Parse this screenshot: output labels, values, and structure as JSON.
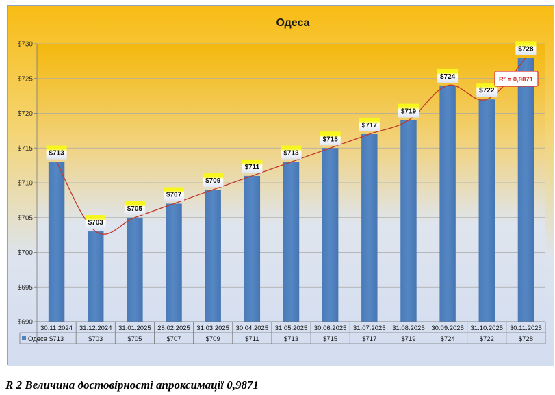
{
  "chart_data": {
    "type": "bar",
    "title": "Одеса",
    "categories": [
      "30.11.2024",
      "31.12.2024",
      "31.01.2025",
      "28.02.2025",
      "31.03.2025",
      "30.04.2025",
      "31.05.2025",
      "30.06.2025",
      "31.07.2025",
      "31.08.2025",
      "30.09.2025",
      "31.10.2025",
      "30.11.2025"
    ],
    "series": [
      {
        "name": "Одеса",
        "values": [
          713,
          703,
          705,
          707,
          709,
          711,
          713,
          715,
          717,
          719,
          724,
          722,
          728
        ]
      }
    ],
    "data_labels": [
      "$713",
      "$703",
      "$705",
      "$707",
      "$709",
      "$711",
      "$713",
      "$715",
      "$717",
      "$719",
      "$724",
      "$722",
      "$728"
    ],
    "table_values": [
      "$713",
      "$703",
      "$705",
      "$707",
      "$709",
      "$711",
      "$713",
      "$715",
      "$717",
      "$719",
      "$724",
      "$722",
      "$728"
    ],
    "ylim": [
      690,
      730
    ],
    "yticks": [
      690,
      695,
      700,
      705,
      710,
      715,
      720,
      725,
      730
    ],
    "ytick_labels": [
      "$690",
      "$695",
      "$700",
      "$705",
      "$710",
      "$715",
      "$720",
      "$725",
      "$730"
    ],
    "trendline": {
      "type": "polynomial",
      "label": "R² = 0,9871"
    },
    "grid": true,
    "legend": "data-table",
    "colors": {
      "bar": "#4f81bd",
      "trend": "#c0392b",
      "label_highlight": "#f5f52a",
      "bg_top": "#f7c21a",
      "bg_bottom": "#d6e0f0"
    }
  },
  "caption": "R 2 Величина достовірності апроксимації 0,9871"
}
